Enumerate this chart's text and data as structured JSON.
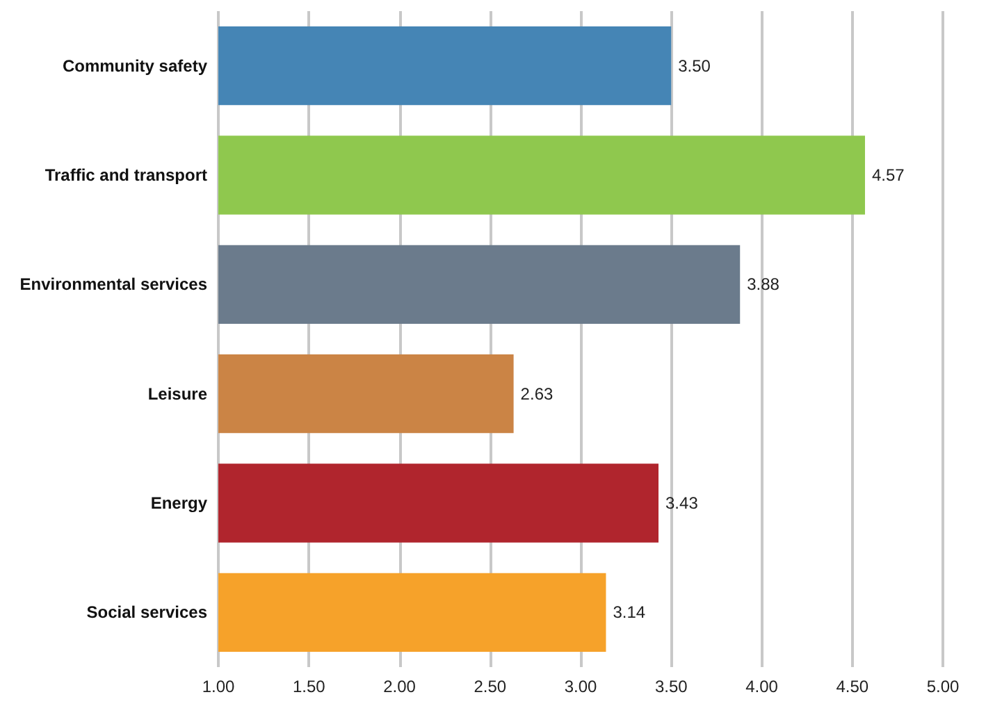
{
  "chart_data": {
    "type": "bar",
    "orientation": "horizontal",
    "categories": [
      "Community safety",
      "Traffic and transport",
      "Environmental services",
      "Leisure",
      "Energy",
      "Social services"
    ],
    "values": [
      3.5,
      4.57,
      3.88,
      2.63,
      3.43,
      3.14
    ],
    "colors": [
      "#4585b5",
      "#8fc84e",
      "#6b7b8c",
      "#cb8445",
      "#b0252d",
      "#f6a22a"
    ],
    "value_labels": [
      "3.50",
      "4.57",
      "3.88",
      "2.63",
      "3.43",
      "3.14"
    ],
    "xlim": [
      1,
      5
    ],
    "xticks": [
      {
        "value": 1,
        "label": "1.00"
      },
      {
        "value": 1.5,
        "label": "1.50"
      },
      {
        "value": 2,
        "label": "2.00"
      },
      {
        "value": 2.5,
        "label": "2.50"
      },
      {
        "value": 3,
        "label": "3.00"
      },
      {
        "value": 3.5,
        "label": "3.50"
      },
      {
        "value": 4,
        "label": "4.00"
      },
      {
        "value": 4.5,
        "label": "4.50"
      },
      {
        "value": 5,
        "label": "5.00"
      }
    ],
    "grid": "x"
  }
}
